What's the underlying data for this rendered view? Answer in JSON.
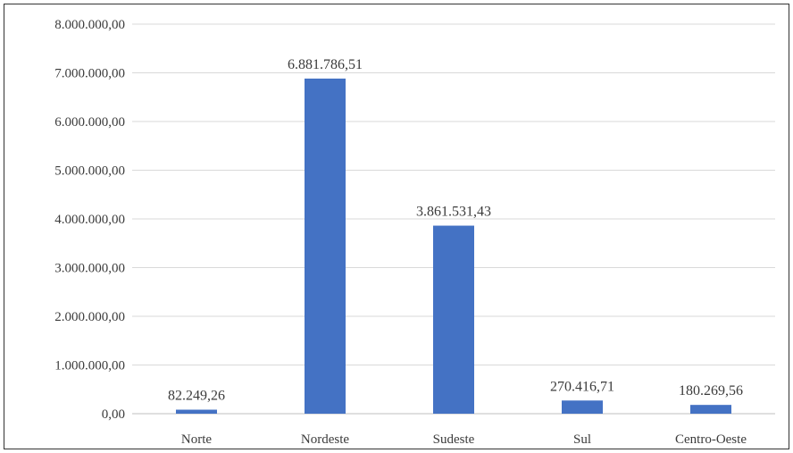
{
  "chart_data": {
    "type": "bar",
    "categories": [
      "Norte",
      "Nordeste",
      "Sudeste",
      "Sul",
      "Centro-Oeste"
    ],
    "values": [
      82249.26,
      6881786.51,
      3861531.43,
      270416.71,
      180269.56
    ],
    "data_labels": [
      "82.249,26",
      "6.881.786,51",
      "3.861.531,43",
      "270.416,71",
      "180.269,56"
    ],
    "y_ticks": [
      0,
      1000000,
      2000000,
      3000000,
      4000000,
      5000000,
      6000000,
      7000000,
      8000000
    ],
    "y_tick_labels": [
      "0,00",
      "1.000.000,00",
      "2.000.000,00",
      "3.000.000,00",
      "4.000.000,00",
      "5.000.000,00",
      "6.000.000,00",
      "7.000.000,00",
      "8.000.000,00"
    ],
    "ylim": [
      0,
      8000000
    ],
    "grid": true,
    "legend": "none",
    "bar_color": "#4472c4",
    "grid_color": "#d9d9d9",
    "text_color": "#3b3b3b"
  }
}
